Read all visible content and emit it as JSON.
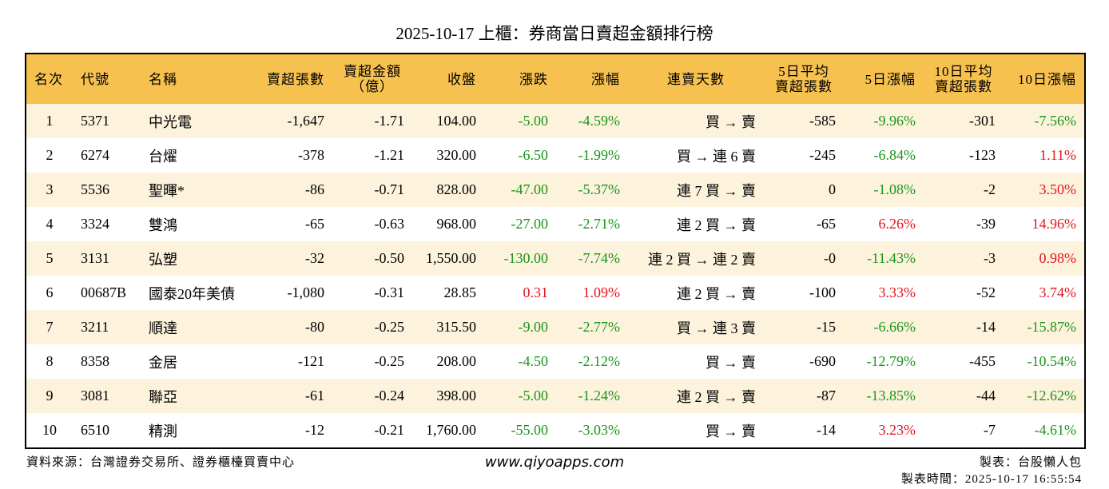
{
  "title": "2025-10-17 上櫃：券商當日賣超金額排行榜",
  "table": {
    "headers": [
      "名次",
      "代號",
      "名稱",
      "賣超張數",
      [
        "賣超金額",
        "（億）"
      ],
      "收盤",
      "漲跌",
      "漲幅",
      "連賣天數",
      [
        "5日平均",
        "賣超張數"
      ],
      "5日漲幅",
      [
        "10日平均",
        "賣超張數"
      ],
      "10日漲幅"
    ],
    "rows": [
      [
        "1",
        "5371",
        "中光電",
        "-1,647",
        "-1.71",
        "104.00",
        "-5.00",
        "-4.59%",
        "買 → 賣",
        "-585",
        "-9.96%",
        "-301",
        "-7.56%"
      ],
      [
        "2",
        "6274",
        "台燿",
        "-378",
        "-1.21",
        "320.00",
        "-6.50",
        "-1.99%",
        "買 → 連 6 賣",
        "-245",
        "-6.84%",
        "-123",
        "1.11%"
      ],
      [
        "3",
        "5536",
        "聖暉*",
        "-86",
        "-0.71",
        "828.00",
        "-47.00",
        "-5.37%",
        "連 7 買 → 賣",
        "0",
        "-1.08%",
        "-2",
        "3.50%"
      ],
      [
        "4",
        "3324",
        "雙鴻",
        "-65",
        "-0.63",
        "968.00",
        "-27.00",
        "-2.71%",
        "連 2 買 → 賣",
        "-65",
        "6.26%",
        "-39",
        "14.96%"
      ],
      [
        "5",
        "3131",
        "弘塑",
        "-32",
        "-0.50",
        "1,550.00",
        "-130.00",
        "-7.74%",
        "連 2 買 → 連 2 賣",
        "-0",
        "-11.43%",
        "-3",
        "0.98%"
      ],
      [
        "6",
        "00687B",
        "國泰20年美債",
        "-1,080",
        "-0.31",
        "28.85",
        "0.31",
        "1.09%",
        "連 2 買 → 賣",
        "-100",
        "3.33%",
        "-52",
        "3.74%"
      ],
      [
        "7",
        "3211",
        "順達",
        "-80",
        "-0.25",
        "315.50",
        "-9.00",
        "-2.77%",
        "買 → 連 3 賣",
        "-15",
        "-6.66%",
        "-14",
        "-15.87%"
      ],
      [
        "8",
        "8358",
        "金居",
        "-121",
        "-0.25",
        "208.00",
        "-4.50",
        "-2.12%",
        "買 → 賣",
        "-690",
        "-12.79%",
        "-455",
        "-10.54%"
      ],
      [
        "9",
        "3081",
        "聯亞",
        "-61",
        "-0.24",
        "398.00",
        "-5.00",
        "-1.24%",
        "連 2 買 → 賣",
        "-87",
        "-13.85%",
        "-44",
        "-12.62%"
      ],
      [
        "10",
        "6510",
        "精測",
        "-12",
        "-0.21",
        "1,760.00",
        "-55.00",
        "-3.03%",
        "買 → 賣",
        "-14",
        "3.23%",
        "-7",
        "-4.61%"
      ]
    ]
  },
  "footer": {
    "source": "資料來源：台灣證券交易所、證券櫃檯買賣中心",
    "site": "www.qiyoapps.com",
    "maker": "製表：台股懶人包",
    "time": "製表時間：2025-10-17 16:55:54"
  }
}
